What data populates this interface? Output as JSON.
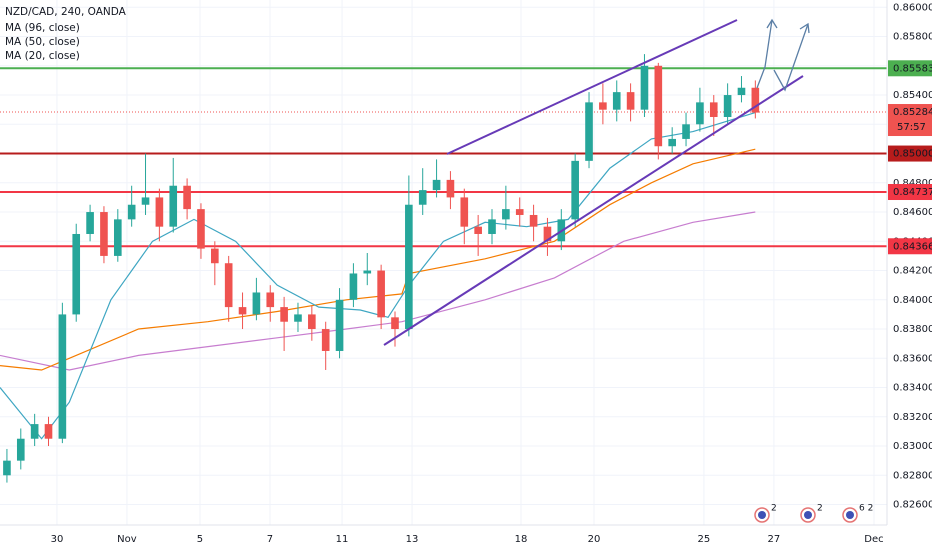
{
  "chart_data": {
    "type": "candlestick",
    "title": "NZD/CAD, 240, OANDA",
    "ylim": [
      0.8246,
      0.8605
    ],
    "yticks": [
      {
        "value": 0.826,
        "label": "0.82600"
      },
      {
        "value": 0.828,
        "label": "0.82800"
      },
      {
        "value": 0.83,
        "label": "0.83000"
      },
      {
        "value": 0.832,
        "label": "0.83200"
      },
      {
        "value": 0.834,
        "label": "0.83400"
      },
      {
        "value": 0.836,
        "label": "0.83600"
      },
      {
        "value": 0.838,
        "label": "0.83800"
      },
      {
        "value": 0.84,
        "label": "0.84000"
      },
      {
        "value": 0.842,
        "label": "0.84200"
      },
      {
        "value": 0.844,
        "label": "0.84400"
      },
      {
        "value": 0.846,
        "label": "0.84600"
      },
      {
        "value": 0.848,
        "label": "0.84800"
      },
      {
        "value": 0.85,
        "label": "0.85000"
      },
      {
        "value": 0.852,
        "label": "0.85200"
      },
      {
        "value": 0.854,
        "label": "0.85400"
      },
      {
        "value": 0.856,
        "label": "0.85600"
      },
      {
        "value": 0.858,
        "label": "0.85800"
      },
      {
        "value": 0.86,
        "label": "0.86000"
      }
    ],
    "xlim": [
      0,
      64
    ],
    "xticks": [
      {
        "value": 4.11,
        "label": "30"
      },
      {
        "value": 9.16,
        "label": "Nov"
      },
      {
        "value": 14.43,
        "label": "5"
      },
      {
        "value": 19.48,
        "label": "7"
      },
      {
        "value": 24.68,
        "label": "11"
      },
      {
        "value": 29.73,
        "label": "13"
      },
      {
        "value": 37.59,
        "label": "18"
      },
      {
        "value": 42.86,
        "label": "20"
      },
      {
        "value": 50.79,
        "label": "25"
      },
      {
        "value": 55.84,
        "label": "27"
      },
      {
        "value": 63.06,
        "label": "Dec"
      }
    ],
    "grid": true,
    "up_color": "#26a69a",
    "down_color": "#ef5350",
    "open": [
      0.828,
      0.829,
      0.8305,
      0.8315,
      0.8305,
      0.839,
      0.8445,
      0.846,
      0.843,
      0.8455,
      0.8465,
      0.847,
      0.845,
      0.8478,
      0.8462,
      0.8435,
      0.8425,
      0.8395,
      0.839,
      0.8405,
      0.8395,
      0.8385,
      0.839,
      0.838,
      0.8365,
      0.84,
      0.8418,
      0.842,
      0.8388,
      0.838,
      0.8465,
      0.8475,
      0.8482,
      0.847,
      0.845,
      0.8445,
      0.8455,
      0.8462,
      0.8458,
      0.845,
      0.844,
      0.8455,
      0.8495,
      0.8535,
      0.853,
      0.8542,
      0.853,
      0.856,
      0.8505,
      0.851,
      0.852,
      0.8535,
      0.8525,
      0.854,
      0.8545
    ],
    "high": [
      0.8298,
      0.8312,
      0.8322,
      0.832,
      0.8398,
      0.8452,
      0.8465,
      0.8464,
      0.8462,
      0.8478,
      0.85,
      0.8476,
      0.8497,
      0.8483,
      0.8466,
      0.844,
      0.843,
      0.8405,
      0.8415,
      0.841,
      0.8402,
      0.8398,
      0.8396,
      0.8385,
      0.8408,
      0.8425,
      0.8432,
      0.8424,
      0.8392,
      0.8485,
      0.849,
      0.8496,
      0.8488,
      0.8476,
      0.8458,
      0.8462,
      0.8478,
      0.847,
      0.8465,
      0.8456,
      0.8462,
      0.85,
      0.8542,
      0.8548,
      0.855,
      0.8548,
      0.8568,
      0.8562,
      0.8518,
      0.8528,
      0.8545,
      0.854,
      0.8548,
      0.8553,
      0.855
    ],
    "low": [
      0.8275,
      0.8284,
      0.83,
      0.83,
      0.8302,
      0.8385,
      0.844,
      0.8425,
      0.8426,
      0.845,
      0.8458,
      0.844,
      0.8446,
      0.8455,
      0.8428,
      0.841,
      0.8385,
      0.838,
      0.8386,
      0.8385,
      0.8365,
      0.8378,
      0.8372,
      0.8352,
      0.836,
      0.8395,
      0.841,
      0.838,
      0.8368,
      0.8375,
      0.8458,
      0.847,
      0.8462,
      0.8438,
      0.843,
      0.8438,
      0.8448,
      0.845,
      0.844,
      0.843,
      0.8434,
      0.845,
      0.849,
      0.852,
      0.8522,
      0.8522,
      0.8525,
      0.8496,
      0.85,
      0.8505,
      0.8515,
      0.8512,
      0.852,
      0.8535,
      0.8524
    ],
    "close": [
      0.829,
      0.8305,
      0.8315,
      0.8305,
      0.839,
      0.8445,
      0.846,
      0.843,
      0.8455,
      0.8465,
      0.847,
      0.845,
      0.8478,
      0.8462,
      0.8435,
      0.8425,
      0.8395,
      0.839,
      0.8405,
      0.8395,
      0.8385,
      0.839,
      0.838,
      0.8365,
      0.84,
      0.8418,
      0.842,
      0.8388,
      0.838,
      0.8465,
      0.8475,
      0.8482,
      0.847,
      0.845,
      0.8445,
      0.8455,
      0.8462,
      0.8458,
      0.845,
      0.844,
      0.8455,
      0.8495,
      0.8535,
      0.853,
      0.8542,
      0.853,
      0.856,
      0.8505,
      0.851,
      0.852,
      0.8535,
      0.8525,
      0.854,
      0.8545,
      0.8528
    ],
    "series": [
      {
        "name": "MA (96, close)",
        "color": "#c77dcf",
        "x": [
          0,
          5,
          10,
          15,
          20,
          25,
          29,
          35,
          40,
          45,
          50,
          54.5
        ],
        "values": [
          0.8362,
          0.8352,
          0.8362,
          0.8368,
          0.8374,
          0.838,
          0.8385,
          0.84,
          0.8415,
          0.844,
          0.8453,
          0.846
        ]
      },
      {
        "name": "MA (50, close)",
        "color": "#f57c00",
        "x": [
          0,
          3,
          5,
          10,
          15,
          20,
          25,
          29,
          29.5,
          35,
          40,
          44,
          47,
          50,
          54.5
        ],
        "values": [
          0.8355,
          0.8352,
          0.836,
          0.838,
          0.8385,
          0.8392,
          0.84,
          0.8404,
          0.8418,
          0.8428,
          0.844,
          0.8465,
          0.848,
          0.8493,
          0.8503
        ]
      },
      {
        "name": "MA (20, close)",
        "color": "#3ea6c2",
        "x": [
          0,
          3,
          5,
          8,
          11,
          14,
          17,
          20,
          23,
          26,
          28,
          29.5,
          32,
          35,
          38,
          41,
          44,
          47,
          50,
          54.5
        ],
        "values": [
          0.834,
          0.8305,
          0.833,
          0.84,
          0.844,
          0.8455,
          0.844,
          0.841,
          0.8395,
          0.8393,
          0.8388,
          0.841,
          0.844,
          0.8453,
          0.845,
          0.8455,
          0.849,
          0.851,
          0.8515,
          0.8528
        ]
      }
    ],
    "levels": [
      {
        "value": 0.85583,
        "label": "0.85583",
        "color": "#4caf50"
      },
      {
        "value": 0.85,
        "label": "0.85000",
        "color": "#b71c1c"
      },
      {
        "value": 0.84737,
        "label": "0.84737",
        "color": "#f23645"
      },
      {
        "value": 0.84366,
        "label": "0.84366",
        "color": "#f23645"
      }
    ],
    "last": {
      "value": 0.85284,
      "label": "0.85284",
      "color": "#ef5350",
      "countdown": "57:57"
    },
    "events": [
      "2",
      "2",
      "6 2"
    ]
  }
}
